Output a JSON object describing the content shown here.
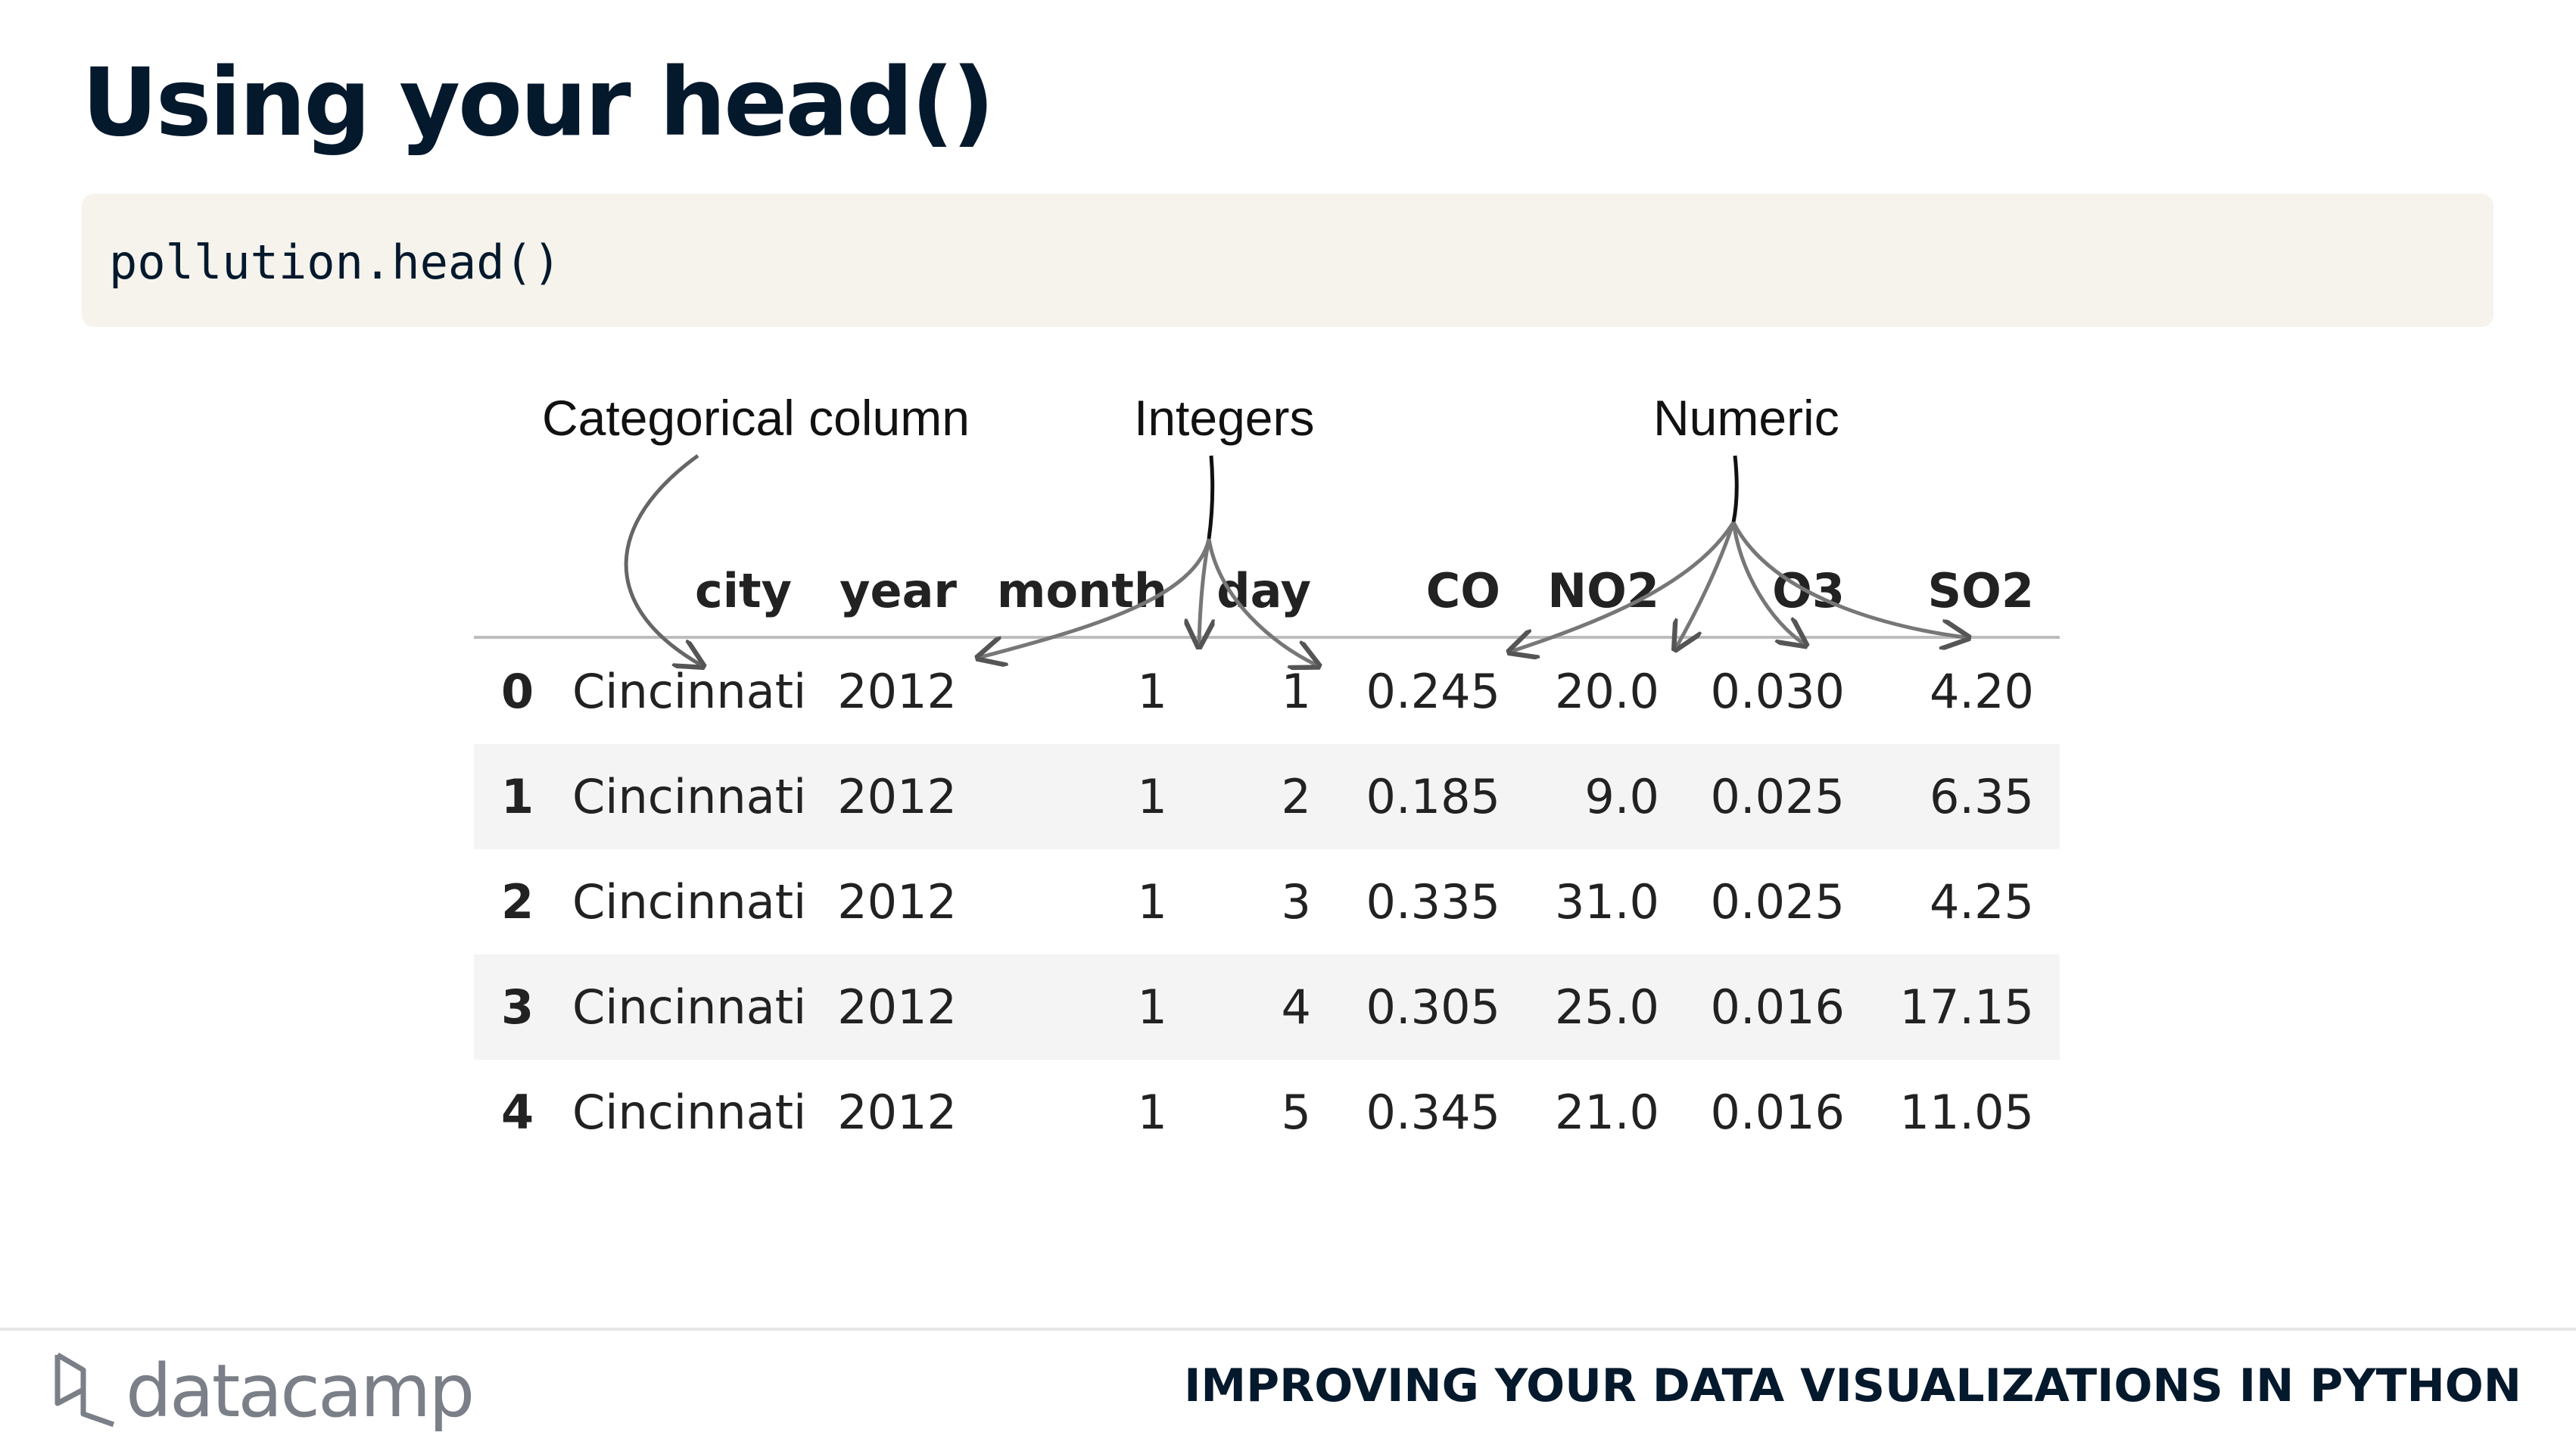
{
  "slide": {
    "title": "Using your head()"
  },
  "code": {
    "text": "pollution.head()"
  },
  "annotations": {
    "categorical": "Categorical column",
    "integers": "Integers",
    "numeric": "Numeric"
  },
  "table": {
    "columns": [
      "",
      "city",
      "year",
      "month",
      "day",
      "CO",
      "NO2",
      "O3",
      "SO2"
    ],
    "rows": [
      [
        "0",
        "Cincinnati",
        "2012",
        "1",
        "1",
        "0.245",
        "20.0",
        "0.030",
        "4.20"
      ],
      [
        "1",
        "Cincinnati",
        "2012",
        "1",
        "2",
        "0.185",
        "9.0",
        "0.025",
        "6.35"
      ],
      [
        "2",
        "Cincinnati",
        "2012",
        "1",
        "3",
        "0.335",
        "31.0",
        "0.025",
        "4.25"
      ],
      [
        "3",
        "Cincinnati",
        "2012",
        "1",
        "4",
        "0.305",
        "25.0",
        "0.016",
        "17.15"
      ],
      [
        "4",
        "Cincinnati",
        "2012",
        "1",
        "5",
        "0.345",
        "21.0",
        "0.016",
        "11.05"
      ]
    ]
  },
  "footer": {
    "brand": "datacamp",
    "course": "IMPROVING YOUR DATA VISUALIZATIONS IN PYTHON"
  },
  "colors": {
    "navy": "#05192d",
    "code_bg": "#f5f3ec",
    "row_stripe": "#f4f4f4"
  }
}
